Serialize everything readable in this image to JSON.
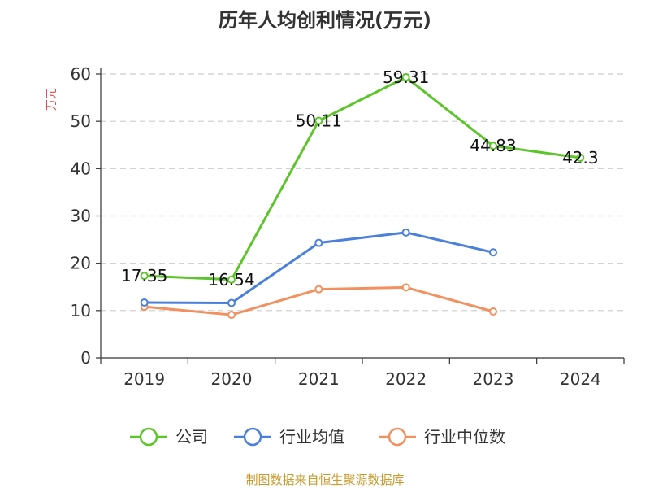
{
  "chart_data": {
    "type": "line",
    "title": "历年人均创利情况(万元)",
    "xlabel": "",
    "ylabel": "万元",
    "categories": [
      "2019",
      "2020",
      "2021",
      "2022",
      "2023",
      "2024"
    ],
    "ylim": [
      0,
      60
    ],
    "yticks": [
      0,
      10,
      20,
      30,
      40,
      50,
      60
    ],
    "grid": true,
    "legend_position": "bottom",
    "series": [
      {
        "name": "公司",
        "color": "#5cc52a",
        "values": [
          17.35,
          16.54,
          50.11,
          59.31,
          44.83,
          42.3
        ],
        "data_labels": [
          "17.35",
          "16.54",
          "50.11",
          "59.31",
          "44.83",
          "42.3"
        ]
      },
      {
        "name": "行业均值",
        "color": "#4a7fdc",
        "values": [
          11.7,
          11.6,
          24.3,
          26.5,
          22.3,
          null
        ]
      },
      {
        "name": "行业中位数",
        "color": "#f2915f",
        "values": [
          10.8,
          9.1,
          14.5,
          14.9,
          9.8,
          null
        ]
      }
    ]
  },
  "source_note": "制图数据来自恒生聚源数据库"
}
